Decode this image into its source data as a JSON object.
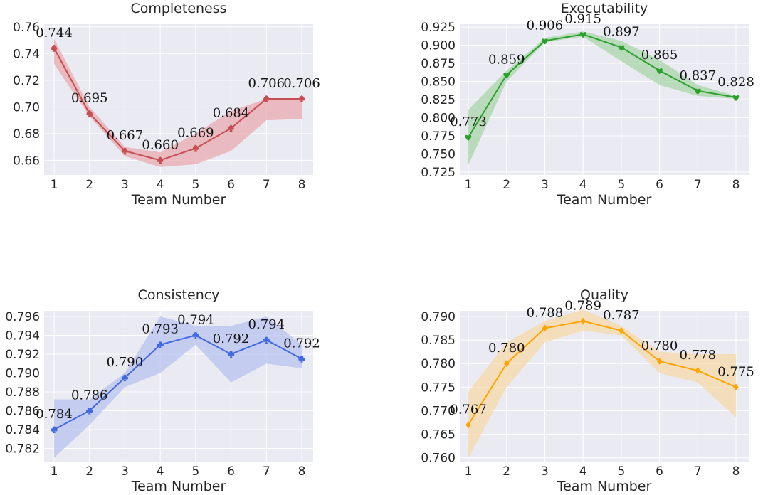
{
  "chart_data": [
    {
      "type": "line",
      "title": "Completeness",
      "xlabel": "Team Number",
      "ylabel": "",
      "x": [
        1,
        2,
        3,
        4,
        5,
        6,
        7,
        8
      ],
      "xticks": [
        "1",
        "2",
        "3",
        "4",
        "5",
        "6",
        "7",
        "8"
      ],
      "ylim": [
        0.649,
        0.762
      ],
      "yticks": [
        "0.66",
        "0.68",
        "0.70",
        "0.72",
        "0.74",
        "0.76"
      ],
      "ytick_values": [
        0.66,
        0.68,
        0.7,
        0.72,
        0.74,
        0.76
      ],
      "series": [
        {
          "values": [
            0.744,
            0.695,
            0.667,
            0.66,
            0.669,
            0.684,
            0.706,
            0.706
          ],
          "labels": [
            "0.744",
            "0.695",
            "0.667",
            "0.660",
            "0.669",
            "0.684",
            "0.706",
            "0.706"
          ],
          "band_lower": [
            0.732,
            0.693,
            0.663,
            0.655,
            0.657,
            0.667,
            0.69,
            0.691
          ],
          "band_upper": [
            0.751,
            0.7,
            0.67,
            0.666,
            0.68,
            0.697,
            0.706,
            0.706
          ],
          "color": "#c44e52",
          "band_color": "#e8a9ae",
          "marker": "spade"
        }
      ],
      "grid": true
    },
    {
      "type": "line",
      "title": "Executability",
      "xlabel": "Team Number",
      "ylabel": "",
      "x": [
        1,
        2,
        3,
        4,
        5,
        6,
        7,
        8
      ],
      "xticks": [
        "1",
        "2",
        "3",
        "4",
        "5",
        "6",
        "7",
        "8"
      ],
      "ylim": [
        0.721,
        0.929
      ],
      "yticks": [
        "0.725",
        "0.750",
        "0.775",
        "0.800",
        "0.825",
        "0.850",
        "0.875",
        "0.900",
        "0.925"
      ],
      "ytick_values": [
        0.725,
        0.75,
        0.775,
        0.8,
        0.825,
        0.85,
        0.875,
        0.9,
        0.925
      ],
      "series": [
        {
          "values": [
            0.773,
            0.859,
            0.906,
            0.915,
            0.897,
            0.865,
            0.837,
            0.828
          ],
          "labels": [
            "0.773",
            "0.859",
            "0.906",
            "0.915",
            "0.897",
            "0.865",
            "0.837",
            "0.828"
          ],
          "band_lower": [
            0.735,
            0.85,
            0.904,
            0.912,
            0.878,
            0.845,
            0.83,
            0.826
          ],
          "band_upper": [
            0.811,
            0.865,
            0.91,
            0.919,
            0.906,
            0.88,
            0.845,
            0.83
          ],
          "color": "#2ca02c",
          "band_color": "#a8d5a8",
          "marker": "heart"
        }
      ],
      "grid": true
    },
    {
      "type": "line",
      "title": "Consistency",
      "xlabel": "Team Number",
      "ylabel": "",
      "x": [
        1,
        2,
        3,
        4,
        5,
        6,
        7,
        8
      ],
      "xticks": [
        "1",
        "2",
        "3",
        "4",
        "5",
        "6",
        "7",
        "8"
      ],
      "ylim": [
        0.7806,
        0.7966
      ],
      "yticks": [
        "0.782",
        "0.784",
        "0.786",
        "0.788",
        "0.790",
        "0.792",
        "0.794",
        "0.796"
      ],
      "ytick_values": [
        0.782,
        0.784,
        0.786,
        0.788,
        0.79,
        0.792,
        0.794,
        0.796
      ],
      "series": [
        {
          "values": [
            0.784,
            0.786,
            0.7895,
            0.793,
            0.794,
            0.792,
            0.7935,
            0.7915
          ],
          "labels": [
            "0.784",
            "0.786",
            "0.790",
            "0.793",
            "0.794",
            "0.792",
            "0.794",
            "0.792"
          ],
          "band_lower": [
            0.781,
            0.7845,
            0.7885,
            0.79,
            0.793,
            0.789,
            0.791,
            0.7905
          ],
          "band_upper": [
            0.7872,
            0.7872,
            0.79,
            0.796,
            0.795,
            0.795,
            0.796,
            0.793
          ],
          "color": "#4169e1",
          "band_color": "#b7c3ef",
          "marker": "club"
        }
      ],
      "grid": true
    },
    {
      "type": "line",
      "title": "Quality",
      "xlabel": "Team Number",
      "ylabel": "",
      "x": [
        1,
        2,
        3,
        4,
        5,
        6,
        7,
        8
      ],
      "xticks": [
        "1",
        "2",
        "3",
        "4",
        "5",
        "6",
        "7",
        "8"
      ],
      "ylim": [
        0.7592,
        0.7912
      ],
      "yticks": [
        "0.760",
        "0.765",
        "0.770",
        "0.775",
        "0.780",
        "0.785",
        "0.790"
      ],
      "ytick_values": [
        0.76,
        0.765,
        0.77,
        0.775,
        0.78,
        0.785,
        0.79
      ],
      "series": [
        {
          "values": [
            0.767,
            0.78,
            0.7875,
            0.789,
            0.787,
            0.7805,
            0.7785,
            0.775
          ],
          "labels": [
            "0.767",
            "0.780",
            "0.788",
            "0.789",
            "0.787",
            "0.780",
            "0.778",
            "0.775"
          ],
          "band_lower": [
            0.76,
            0.775,
            0.7845,
            0.787,
            0.786,
            0.778,
            0.776,
            0.7685
          ],
          "band_upper": [
            0.774,
            0.7845,
            0.789,
            0.7915,
            0.788,
            0.7825,
            0.782,
            0.782
          ],
          "color": "#ffa500",
          "band_color": "#f7d8a8",
          "marker": "diamond"
        }
      ],
      "grid": true
    }
  ]
}
